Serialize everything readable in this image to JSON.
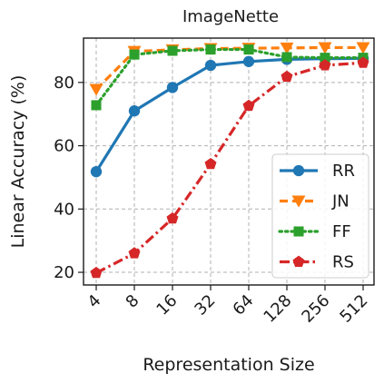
{
  "chart_data": {
    "type": "line",
    "title": "ImageNette",
    "xlabel": "Representation Size",
    "ylabel": "Linear Accuracy (%)",
    "categories": [
      "4",
      "8",
      "16",
      "32",
      "64",
      "128",
      "256",
      "512"
    ],
    "ylim": [
      16,
      94
    ],
    "yticks": [
      20,
      40,
      60,
      80
    ],
    "grid": true,
    "legend_position": "lower-right",
    "series": [
      {
        "name": "RR",
        "color": "#1f77b4",
        "dash": "solid",
        "marker": "circle",
        "values": [
          51.8,
          71.0,
          78.4,
          85.4,
          86.6,
          87.3,
          87.5,
          87.6
        ]
      },
      {
        "name": "JN",
        "color": "#ff7f0e",
        "dash": "dashed",
        "marker": "triangle-down",
        "values": [
          77.8,
          89.8,
          90.3,
          90.7,
          90.8,
          90.9,
          91.0,
          91.0
        ]
      },
      {
        "name": "FF",
        "color": "#2ca02c",
        "dash": "dotted",
        "marker": "square",
        "values": [
          72.8,
          88.8,
          90.0,
          90.4,
          90.4,
          88.0,
          87.8,
          87.8
        ]
      },
      {
        "name": "RS",
        "color": "#d62728",
        "dash": "dashdot",
        "marker": "pentagon",
        "values": [
          19.8,
          26.0,
          37.0,
          54.2,
          72.6,
          81.8,
          85.4,
          86.2
        ]
      }
    ]
  }
}
